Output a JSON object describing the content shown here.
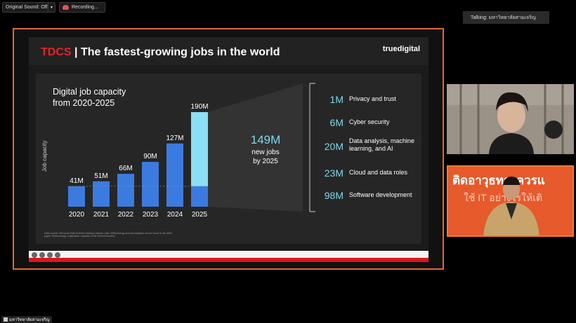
{
  "top": {
    "sound_label": "Original Sound: Off",
    "recording_label": "Recording...",
    "talking_label": "Talking: มหาวิทยาลัยสามเจริญ"
  },
  "slide": {
    "brand": "TDCS",
    "title": "The fastest-growing jobs in the world",
    "logo": "truedigital",
    "chart_title_line1": "Digital job capacity",
    "chart_title_line2": "from 2020-2025",
    "ylabel": "Job capacity",
    "big_number": "149M",
    "big_sub_line1": "new jobs",
    "big_sub_line2": "by 2025",
    "source": "Data Source: Microsoft Data Science utilizing LinkedIn Data. Methodology and assumptions can be found in the white paper \"Methodology: Digitization Capacity of the World Economy\"",
    "jobs": [
      {
        "num": "1M",
        "text": "Privacy and trust"
      },
      {
        "num": "6M",
        "text": "Cyber security"
      },
      {
        "num": "20M",
        "text": "Data analysis, machine learning, and AI"
      },
      {
        "num": "23M",
        "text": "Cloud and data roles"
      },
      {
        "num": "98M",
        "text": "Software development"
      }
    ]
  },
  "chart_data": {
    "type": "bar",
    "title": "Digital job capacity from 2020-2025",
    "ylabel": "Job capacity",
    "categories": [
      "2020",
      "2021",
      "2022",
      "2023",
      "2024",
      "2025"
    ],
    "values": [
      41,
      51,
      66,
      90,
      127,
      190
    ],
    "labels": [
      "41M",
      "51M",
      "66M",
      "90M",
      "127M",
      "190M"
    ],
    "highlight_last_above_baseline": 41,
    "colors": {
      "bar": "#3b7be0",
      "highlight": "#8be0f5"
    }
  },
  "video": {
    "tile2_text_line1": "ติดอาวุธทางควรแ",
    "tile2_text_line2": "ใช้ IT อย่างไรให้เติ"
  },
  "bottom": {
    "name": "มหาวิทยาลัยสามเจริญ"
  }
}
